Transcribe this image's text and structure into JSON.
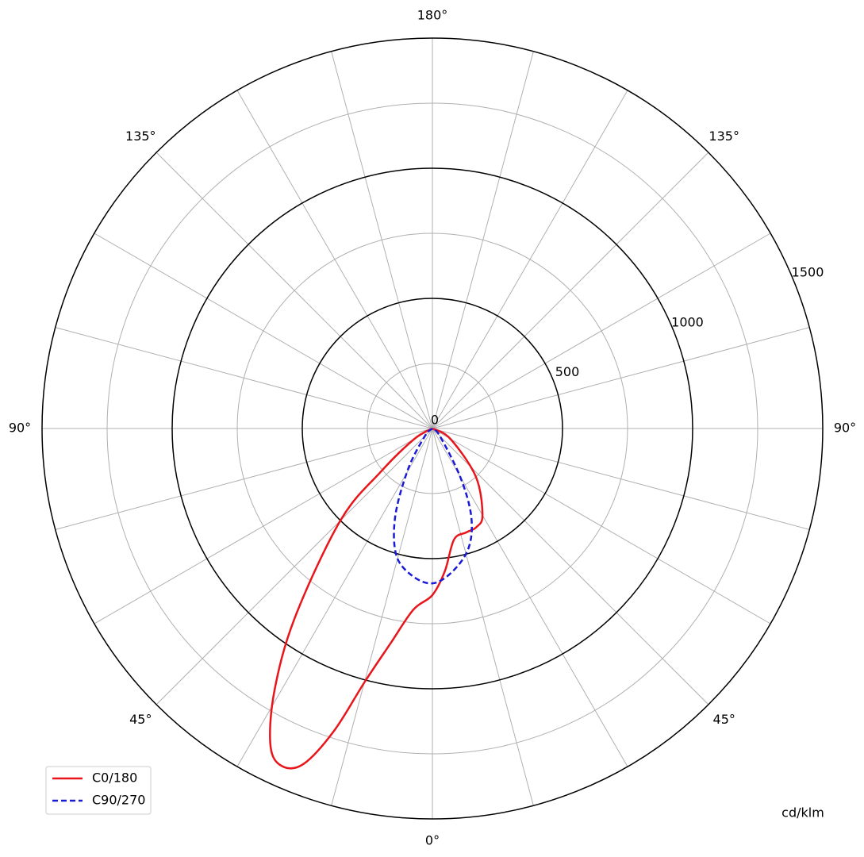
{
  "chart_data": {
    "type": "polar",
    "unit_label": "cd/klm",
    "rlim": [
      0,
      1500
    ],
    "rticks": [
      0,
      500,
      1000,
      1500
    ],
    "rgrid_minor": [
      250,
      750,
      1250
    ],
    "theta_grid": [
      -165,
      -150,
      -135,
      -120,
      -105,
      -90,
      -75,
      -60,
      -45,
      -30,
      -15,
      0,
      15,
      30,
      45,
      60,
      75,
      90,
      105,
      120,
      135,
      150,
      165,
      180
    ],
    "theta_ticks": [
      {
        "value": 0,
        "label": "0°"
      },
      {
        "value": 45,
        "label": "45°"
      },
      {
        "value": -45,
        "label": "45°"
      },
      {
        "value": 90,
        "label": "90°"
      },
      {
        "value": -90,
        "label": "90°"
      },
      {
        "value": 135,
        "label": "135°"
      },
      {
        "value": -135,
        "label": "135°"
      },
      {
        "value": 180,
        "label": "180°"
      }
    ],
    "legend": "lower left",
    "series": [
      {
        "name": "C0/180",
        "color": "#e8161b",
        "dash": false,
        "x": [
          -90,
          -60,
          -50,
          -45,
          -36,
          -31,
          -27,
          -24,
          -21,
          -18,
          -15,
          -11,
          -6,
          0,
          5,
          11,
          18,
          24,
          30,
          42,
          60,
          90
        ],
        "values": [
          0,
          80,
          260,
          500,
          900,
          1180,
          1370,
          1420,
          1380,
          1220,
          1010,
          840,
          700,
          640,
          550,
          435,
          420,
          415,
          385,
          250,
          80,
          0
        ]
      },
      {
        "name": "C90/270",
        "color": "#1a1ad6",
        "dash": true,
        "x": [
          -90,
          -45,
          -31,
          -23,
          -16,
          -8,
          0,
          8,
          17,
          24,
          30,
          45,
          90
        ],
        "values": [
          0,
          40,
          180,
          365,
          505,
          570,
          595,
          555,
          478,
          366,
          212,
          40,
          0
        ]
      }
    ]
  }
}
